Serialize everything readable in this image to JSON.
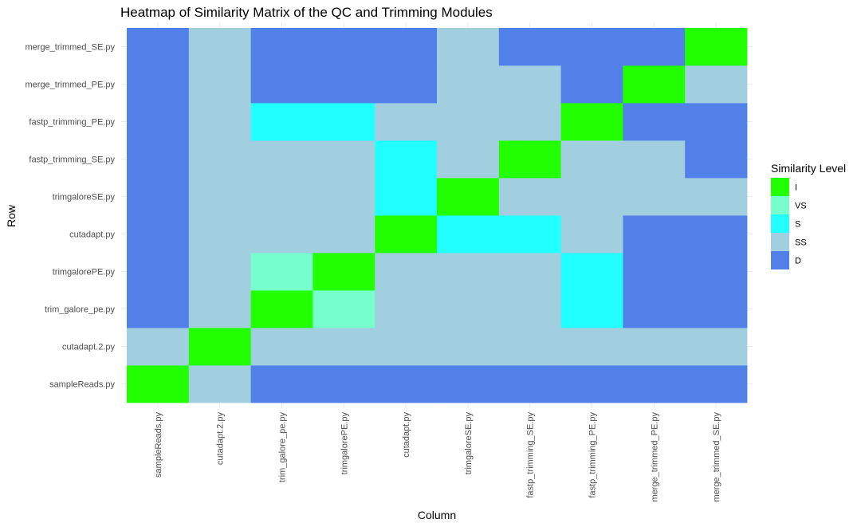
{
  "chart_data": {
    "type": "heatmap",
    "title": "Heatmap of Similarity Matrix of the QC and Trimming Modules",
    "xlabel": "Column",
    "ylabel": "Row",
    "x_categories": [
      "sampleReads.py",
      "cutadapt.2.py",
      "trim_galore_pe.py",
      "trimgalorePE.py",
      "cutadapt.py",
      "trimgaloreSE.py",
      "fastp_trimming_SE.py",
      "fastp_trimming_PE.py",
      "merge_trimmed_PE.py",
      "merge_trimmed_SE.py"
    ],
    "y_categories": [
      "sampleReads.py",
      "cutadapt.2.py",
      "trim_galore_pe.py",
      "trimgalorePE.py",
      "cutadapt.py",
      "trimgaloreSE.py",
      "fastp_trimming_SE.py",
      "fastp_trimming_PE.py",
      "merge_trimmed_PE.py",
      "merge_trimmed_SE.py"
    ],
    "legend": {
      "title": "Similarity Level",
      "position": "right",
      "levels": [
        {
          "label": "I",
          "color": "#22ff00"
        },
        {
          "label": "VS",
          "color": "#76ffcc"
        },
        {
          "label": "S",
          "color": "#22ffff"
        },
        {
          "label": "SS",
          "color": "#a1cfe0"
        },
        {
          "label": "D",
          "color": "#5180e9"
        }
      ]
    },
    "grid": true,
    "matrix": [
      [
        "I",
        "SS",
        "D",
        "D",
        "D",
        "D",
        "D",
        "D",
        "D",
        "D"
      ],
      [
        "SS",
        "I",
        "SS",
        "SS",
        "SS",
        "SS",
        "SS",
        "SS",
        "SS",
        "SS"
      ],
      [
        "D",
        "SS",
        "I",
        "VS",
        "SS",
        "SS",
        "SS",
        "S",
        "D",
        "D"
      ],
      [
        "D",
        "SS",
        "VS",
        "I",
        "SS",
        "SS",
        "SS",
        "S",
        "D",
        "D"
      ],
      [
        "D",
        "SS",
        "SS",
        "SS",
        "I",
        "S",
        "S",
        "SS",
        "D",
        "D"
      ],
      [
        "D",
        "SS",
        "SS",
        "SS",
        "S",
        "I",
        "SS",
        "SS",
        "SS",
        "SS"
      ],
      [
        "D",
        "SS",
        "SS",
        "SS",
        "S",
        "SS",
        "I",
        "SS",
        "SS",
        "D"
      ],
      [
        "D",
        "SS",
        "S",
        "S",
        "SS",
        "SS",
        "SS",
        "I",
        "D",
        "D"
      ],
      [
        "D",
        "SS",
        "D",
        "D",
        "D",
        "SS",
        "SS",
        "D",
        "I",
        "SS"
      ],
      [
        "D",
        "SS",
        "D",
        "D",
        "D",
        "SS",
        "D",
        "D",
        "D",
        "I"
      ]
    ]
  }
}
